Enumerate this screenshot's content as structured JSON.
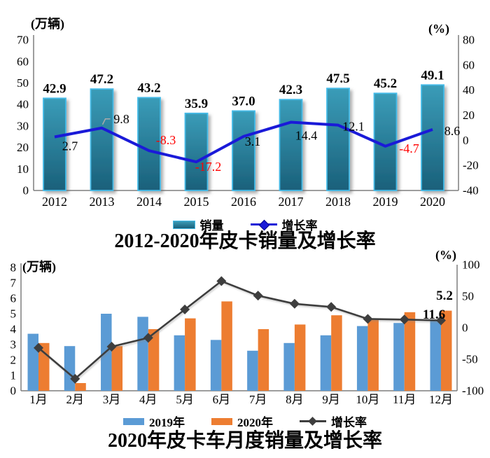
{
  "page": {
    "background": "#ffffff"
  },
  "chart_data": [
    {
      "type": "bar",
      "title": "2012-2020年皮卡销量及增长率",
      "categories": [
        "2012",
        "2013",
        "2014",
        "2015",
        "2016",
        "2017",
        "2018",
        "2019",
        "2020"
      ],
      "series": [
        {
          "name": "销量",
          "kind": "bar",
          "axis": "left",
          "values": [
            42.9,
            47.2,
            43.2,
            35.9,
            37.0,
            42.3,
            47.5,
            45.2,
            49.1
          ],
          "labels": [
            "42.9",
            "47.2",
            "43.2",
            "35.9",
            "37.0",
            "42.3",
            "47.5",
            "45.2",
            "49.1"
          ]
        },
        {
          "name": "增长率",
          "kind": "line",
          "axis": "right",
          "values": [
            2.7,
            9.8,
            -8.3,
            -17.2,
            3.1,
            14.4,
            12.1,
            -4.7,
            8.6
          ],
          "labels": [
            "2.7",
            "9.8",
            "-8.3",
            "-17.2",
            "3.1",
            "14.4",
            "12.1",
            "-4.7",
            "8.6"
          ]
        }
      ],
      "left_axis": {
        "unit": "(万辆)",
        "min": 0,
        "max": 70,
        "step": 10
      },
      "right_axis": {
        "unit": "(%)",
        "min": -40,
        "max": 80,
        "step": 20
      },
      "grid": false,
      "legend_position": "bottom",
      "colors": {
        "bar_top": "#3A9CB8",
        "bar_bottom": "#1A607A",
        "bar_border": "#44BBE8",
        "line": "#1A1AD8",
        "label_positive": "#000000",
        "label_negative": "#FF0000",
        "axis": "#7F7F7F"
      }
    },
    {
      "type": "bar",
      "title": "2020年皮卡车月度销量及增长率",
      "categories": [
        "1月",
        "2月",
        "3月",
        "4月",
        "5月",
        "6月",
        "7月",
        "8月",
        "9月",
        "10月",
        "11月",
        "12月"
      ],
      "series": [
        {
          "name": "2019年",
          "kind": "bar",
          "axis": "left",
          "values": [
            3.7,
            2.9,
            5.0,
            4.8,
            3.6,
            3.3,
            2.6,
            3.1,
            3.6,
            4.2,
            4.4,
            4.6
          ]
        },
        {
          "name": "2020年",
          "kind": "bar",
          "axis": "left",
          "values": [
            3.1,
            0.5,
            2.9,
            4.0,
            4.7,
            5.8,
            4.0,
            4.3,
            4.9,
            4.7,
            5.1,
            5.2
          ]
        },
        {
          "name": "增长率",
          "kind": "line",
          "axis": "right",
          "values": [
            -32,
            -81,
            -30,
            -16,
            29,
            74,
            51,
            38,
            33,
            14,
            13,
            11.6
          ]
        }
      ],
      "left_axis": {
        "unit": "(万辆)",
        "min": 0,
        "max": 8,
        "step": 1
      },
      "right_axis": {
        "unit": "(%)",
        "min": -100,
        "max": 100,
        "step": 50
      },
      "annotations": [
        {
          "text": "5.2",
          "refers_to": "2020年 12月销量"
        },
        {
          "text": "11.6",
          "refers_to": "增长率 12月"
        }
      ],
      "grid": false,
      "legend_position": "bottom",
      "colors": {
        "bar_2019": "#5B9BD5",
        "bar_2020": "#ED7D31",
        "line": "#3E3E3E",
        "axis": "#7F7F7F"
      }
    }
  ]
}
